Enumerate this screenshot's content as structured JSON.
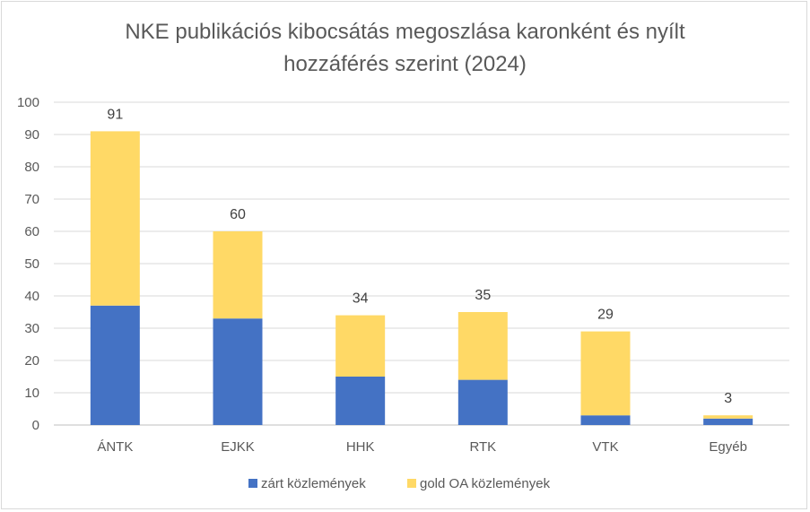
{
  "chart_data": {
    "type": "bar",
    "stacked": true,
    "title_lines": [
      "NKE publikációs kibocsátás megoszlása karonként és nyílt",
      "hozzáférés szerint (2024)"
    ],
    "categories": [
      "ÁNTK",
      "EJKK",
      "HHK",
      "RTK",
      "VTK",
      "Egyéb"
    ],
    "series": [
      {
        "name": "zárt közlemények",
        "color": "#4472c4",
        "values": [
          37,
          33,
          15,
          14,
          3,
          2
        ]
      },
      {
        "name": "gold OA közlemények",
        "color": "#ffd966",
        "values": [
          54,
          27,
          19,
          21,
          26,
          1
        ]
      }
    ],
    "totals": [
      91,
      60,
      34,
      35,
      29,
      3
    ],
    "ylim": [
      0,
      100
    ],
    "yticks": [
      0,
      10,
      20,
      30,
      40,
      50,
      60,
      70,
      80,
      90,
      100
    ],
    "grid": true,
    "legend_position": "bottom"
  }
}
